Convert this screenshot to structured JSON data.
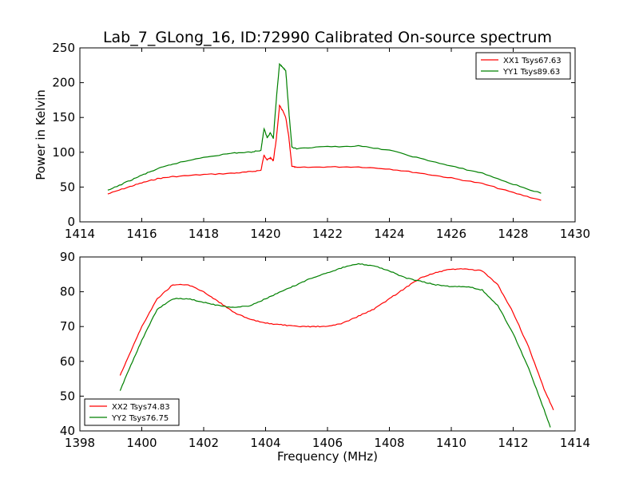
{
  "title": "Lab_7_GLong_16, ID:72990 Calibrated On-source spectrum",
  "chart_data": [
    {
      "type": "line",
      "title": "Lab_7_GLong_16, ID:72990 Calibrated On-source spectrum",
      "xlabel": "",
      "ylabel": "Power in Kelvin",
      "xlim": [
        1414,
        1430
      ],
      "ylim": [
        0,
        250
      ],
      "xticks": [
        1414,
        1416,
        1418,
        1420,
        1422,
        1424,
        1426,
        1428,
        1430
      ],
      "yticks": [
        0,
        50,
        100,
        150,
        200,
        250
      ],
      "legend_position": "top-right",
      "series": [
        {
          "name": "XX1 Tsys67.63",
          "color": "#ff0000",
          "x": [
            1414.9,
            1415.5,
            1416,
            1416.5,
            1417,
            1418,
            1419,
            1419.5,
            1419.85,
            1419.95,
            1420.05,
            1420.15,
            1420.25,
            1420.35,
            1420.45,
            1420.55,
            1420.65,
            1420.75,
            1420.85,
            1421,
            1422,
            1423,
            1424,
            1425,
            1426,
            1427,
            1428,
            1428.9
          ],
          "values": [
            40,
            49,
            56,
            62,
            65,
            68,
            70,
            72,
            74,
            96,
            89,
            92,
            88,
            120,
            167,
            160,
            150,
            122,
            80,
            78,
            79,
            79,
            76,
            70,
            63,
            55,
            42,
            31
          ]
        },
        {
          "name": "YY1 Tsys89.63",
          "color": "#008000",
          "x": [
            1414.9,
            1415.5,
            1416,
            1416.5,
            1417,
            1418,
            1419,
            1419.5,
            1419.85,
            1419.95,
            1420.05,
            1420.15,
            1420.25,
            1420.35,
            1420.45,
            1420.55,
            1420.65,
            1420.75,
            1420.85,
            1421,
            1422,
            1423,
            1424,
            1425,
            1426,
            1427,
            1428,
            1428.9
          ],
          "values": [
            45,
            57,
            67,
            76,
            83,
            93,
            99,
            100,
            103,
            134,
            121,
            128,
            120,
            178,
            227,
            222,
            218,
            160,
            107,
            105,
            108,
            109,
            103,
            91,
            80,
            70,
            54,
            41
          ]
        }
      ]
    },
    {
      "type": "line",
      "title": "",
      "xlabel": "Frequency (MHz)",
      "ylabel": "",
      "xlim": [
        1398,
        1414
      ],
      "ylim": [
        40,
        90
      ],
      "xticks": [
        1398,
        1400,
        1402,
        1404,
        1406,
        1408,
        1410,
        1412,
        1414
      ],
      "yticks": [
        40,
        50,
        60,
        70,
        80,
        90
      ],
      "legend_position": "bottom-left",
      "series": [
        {
          "name": "XX2 Tsys74.83",
          "color": "#ff0000",
          "x": [
            1399.3,
            1399.6,
            1400,
            1400.5,
            1401,
            1401.5,
            1402,
            1402.5,
            1403,
            1403.5,
            1404,
            1404.5,
            1405,
            1405.5,
            1406,
            1406.5,
            1407,
            1407.5,
            1408,
            1408.5,
            1409,
            1409.5,
            1410,
            1410.5,
            1411,
            1411.5,
            1412,
            1412.5,
            1413,
            1413.3
          ],
          "values": [
            56,
            62,
            70,
            78,
            82,
            82,
            80,
            77,
            74,
            72,
            71,
            70.5,
            70,
            70,
            70,
            71,
            73,
            75,
            78,
            81,
            84,
            85.5,
            86.5,
            86.5,
            86,
            82,
            74,
            64,
            52,
            46
          ]
        },
        {
          "name": "YY2 Tsys76.75",
          "color": "#008000",
          "x": [
            1399.3,
            1399.6,
            1400,
            1400.5,
            1401,
            1401.5,
            1402,
            1402.5,
            1403,
            1403.5,
            1404,
            1404.5,
            1405,
            1405.5,
            1406,
            1406.5,
            1407,
            1407.5,
            1408,
            1408.5,
            1409,
            1409.5,
            1410,
            1410.5,
            1411,
            1411.5,
            1412,
            1412.5,
            1413,
            1413.2
          ],
          "values": [
            51.5,
            58,
            66,
            75,
            78,
            78,
            77,
            76,
            75.5,
            76,
            78,
            80,
            82,
            84,
            85.5,
            87,
            88,
            87.5,
            86,
            84,
            83,
            82,
            81.5,
            81.5,
            80.5,
            76,
            68,
            58,
            46,
            41
          ]
        }
      ]
    }
  ]
}
